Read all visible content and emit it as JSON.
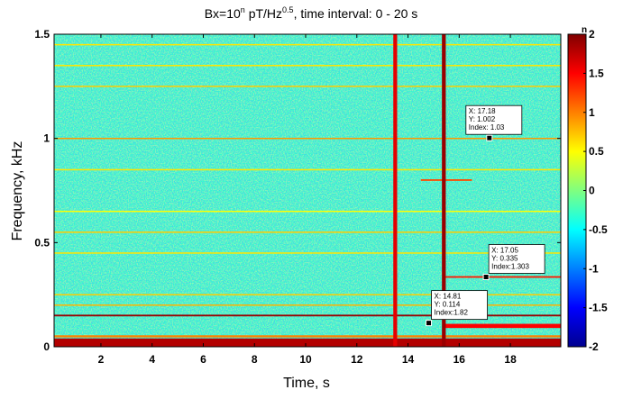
{
  "chart_data": {
    "type": "spectrogram",
    "title_parts": [
      "Bx=10",
      "n",
      " pT/Hz",
      "0.5",
      ", time interval: 0 - 20 s"
    ],
    "x_label": "Time, s",
    "y_label": "Frequency, kHz",
    "colorbar_label": "n",
    "xlim": [
      0.17,
      19.97
    ],
    "xticks": [
      2,
      4,
      6,
      8,
      10,
      12,
      14,
      16,
      18
    ],
    "ylim": [
      0,
      1.5
    ],
    "yticks": [
      0,
      0.5,
      1,
      1.5
    ],
    "clim": [
      -2,
      2
    ],
    "cticks": [
      -2,
      -1.5,
      -1,
      -0.5,
      0,
      0.5,
      1,
      1.5,
      2
    ],
    "colormap": "jet",
    "background_level": -0.3,
    "hlines": [
      {
        "f": 0.02,
        "level": 1.8,
        "width": 0.04
      },
      {
        "f": 0.05,
        "level": 1.0,
        "width": 0.01
      },
      {
        "f": 0.15,
        "level": 1.9,
        "width": 0.008
      },
      {
        "f": 0.2,
        "level": 0.8,
        "width": 0.006
      },
      {
        "f": 0.25,
        "level": 0.7,
        "width": 0.006
      },
      {
        "f": 0.45,
        "level": 0.6,
        "width": 0.006
      },
      {
        "f": 0.55,
        "level": 0.7,
        "width": 0.006
      },
      {
        "f": 0.65,
        "level": 0.5,
        "width": 0.006
      },
      {
        "f": 0.85,
        "level": 0.6,
        "width": 0.006
      },
      {
        "f": 1.0,
        "level": 0.9,
        "width": 0.006
      },
      {
        "f": 1.25,
        "level": 0.7,
        "width": 0.006
      },
      {
        "f": 1.35,
        "level": 0.6,
        "width": 0.006
      },
      {
        "f": 1.45,
        "level": 0.6,
        "width": 0.006
      }
    ],
    "segments": [
      {
        "f": 0.335,
        "t0": 15.4,
        "t1": 19.97,
        "level": 1.4,
        "width": 0.008
      },
      {
        "f": 0.1,
        "t0": 15.4,
        "t1": 19.97,
        "level": 1.5,
        "width": 0.02
      },
      {
        "f": 0.8,
        "t0": 14.5,
        "t1": 16.5,
        "level": 1.2,
        "width": 0.008
      }
    ],
    "vlines": [
      {
        "t": 13.5,
        "level": 1.6,
        "width": 0.15
      },
      {
        "t": 15.4,
        "level": 1.9,
        "width": 0.15
      }
    ],
    "datatips": [
      {
        "x": 17.18,
        "y": 1.002,
        "index": 1.03,
        "labels": [
          "X: 17.18",
          "Y: 1.002",
          "Index: 1.03"
        ]
      },
      {
        "x": 17.05,
        "y": 0.335,
        "index": 1.303,
        "labels": [
          "X: 17.05",
          "Y: 0.335",
          "Index:1.303"
        ]
      },
      {
        "x": 14.81,
        "y": 0.114,
        "index": 1.82,
        "labels": [
          "X: 14.81",
          "Y: 0.114",
          "Index:1.82"
        ]
      }
    ]
  }
}
